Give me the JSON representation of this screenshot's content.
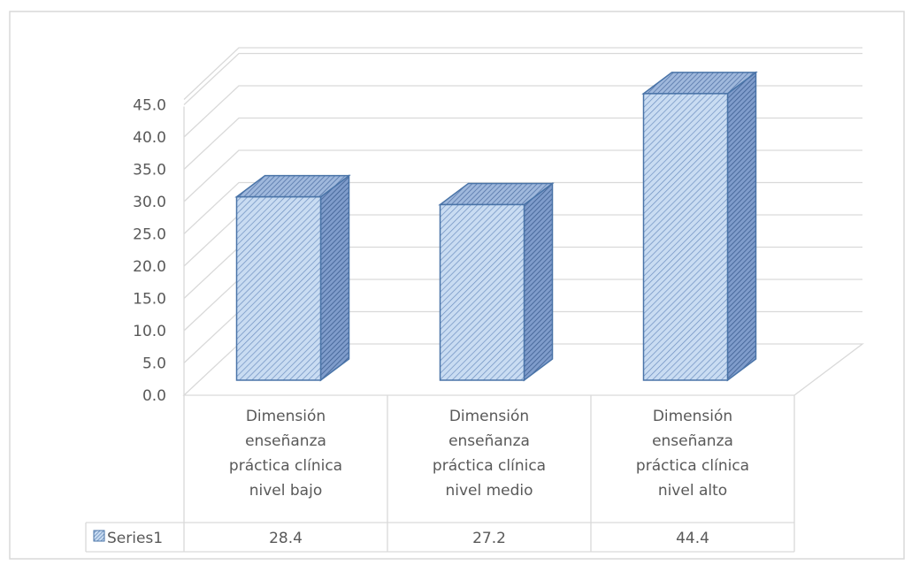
{
  "chart_data": {
    "type": "bar",
    "style": "3d-column-with-data-table",
    "categories": [
      [
        "Dimensión",
        "enseñanza",
        "práctica clínica",
        "nivel bajo"
      ],
      [
        "Dimensión",
        "enseñanza",
        "práctica clínica",
        "nivel medio"
      ],
      [
        "Dimensión",
        "enseñanza",
        "práctica clínica",
        "nivel alto"
      ]
    ],
    "series": [
      {
        "name": "Series1",
        "values": [
          28.4,
          27.2,
          44.4
        ],
        "value_labels": [
          "28.4",
          "27.2",
          "44.4"
        ]
      }
    ],
    "ylim": [
      0,
      45
    ],
    "yticks": [
      "0.0",
      "5.0",
      "10.0",
      "15.0",
      "20.0",
      "25.0",
      "30.0",
      "35.0",
      "40.0",
      "45.0"
    ],
    "grid": true,
    "legend": "data-table-left",
    "colors": {
      "bar": "#c5d9f1",
      "bar_border": "#4a74a8",
      "hatch": "#5b7fb5",
      "grid": "#d9d9d9",
      "text": "#595959"
    }
  }
}
